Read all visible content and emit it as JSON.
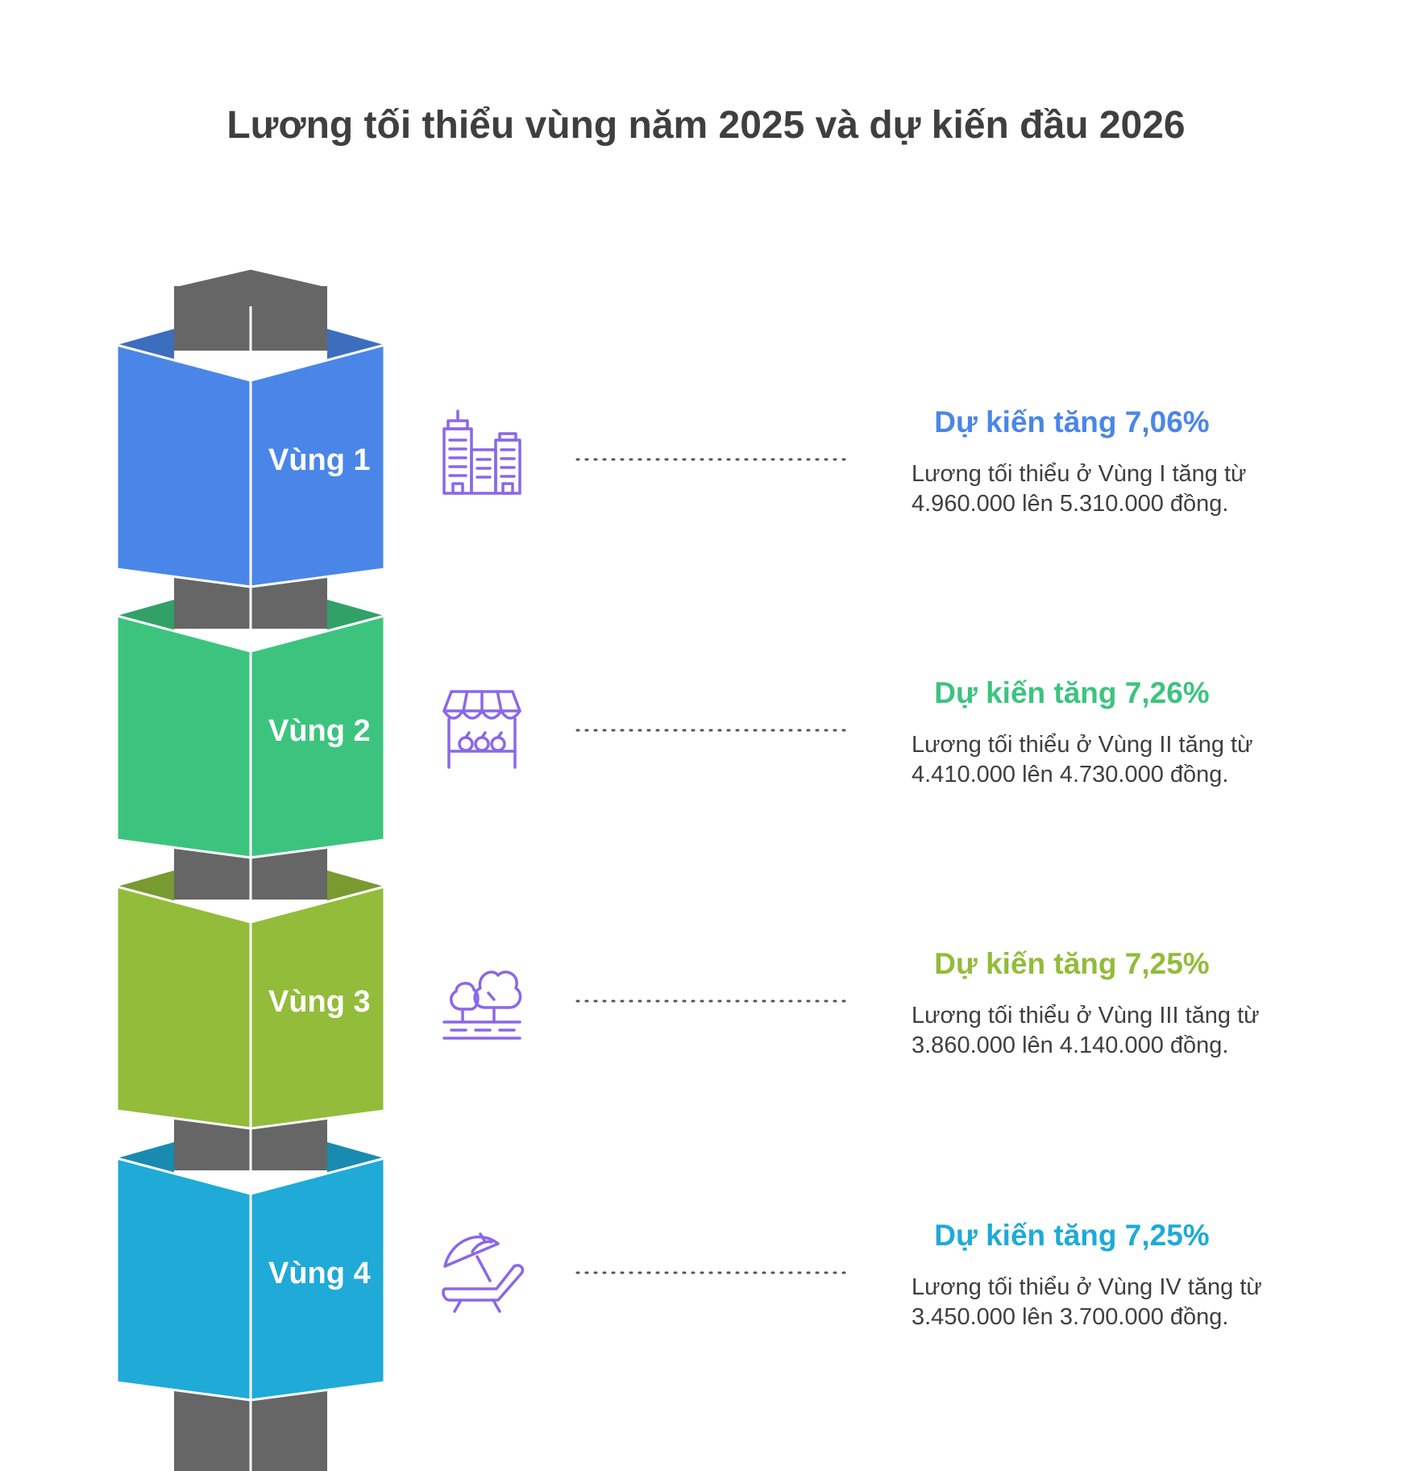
{
  "title": "Lương tối thiểu vùng năm 2025 và dự kiến đầu 2026",
  "items": [
    {
      "label": "Vùng 1",
      "color": "#4A86E8",
      "icon": "city-buildings-icon",
      "headline": "Dự kiến tăng 7,06%",
      "description": "Lương tối thiểu ở Vùng I tăng từ 4.960.000 lên 5.310.000 đồng."
    },
    {
      "label": "Vùng 2",
      "color": "#3CC47F",
      "icon": "market-stall-icon",
      "headline": "Dự kiến tăng 7,26%",
      "description": "Lương tối thiểu ở Vùng II tăng từ 4.410.000 lên 4.730.000 đồng."
    },
    {
      "label": "Vùng 3",
      "color": "#92BC3A",
      "icon": "trees-road-icon",
      "headline": "Dự kiến tăng 7,25%",
      "description": "Lương tối thiểu ở Vùng III tăng từ 3.860.000 lên 4.140.000 đồng."
    },
    {
      "label": "Vùng 4",
      "color": "#1FAAD8",
      "icon": "beach-chair-umbrella-icon",
      "headline": "Dự kiến tăng 7,25%",
      "description": "Lương tối thiểu ở Vùng IV tăng từ 3.450.000 lên 3.700.000 đồng."
    }
  ],
  "colors": {
    "pillar": "#666666",
    "icon": "#8B67E8",
    "text": "#3F3F3F"
  }
}
